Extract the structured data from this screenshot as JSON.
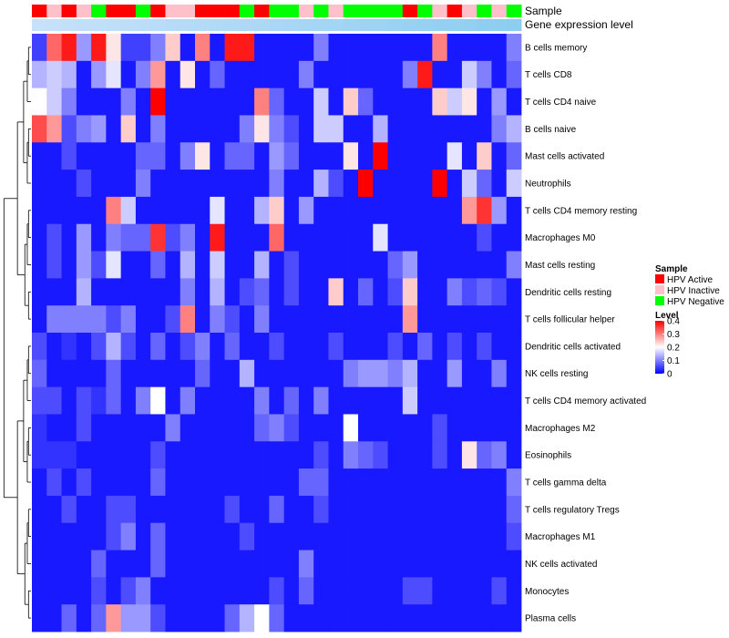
{
  "chart_data": {
    "type": "heatmap",
    "annotation_tracks": [
      "Sample",
      "Gene expression level"
    ],
    "rows": [
      "B cells memory",
      "T cells CD8",
      "T cells CD4 naive",
      "B cells naive",
      "Mast cells activated",
      "Neutrophils",
      "T cells CD4 memory resting",
      "Macrophages M0",
      "Mast cells resting",
      "Dendritic cells resting",
      "T cells follicular helper",
      "Dendritic cells activated",
      "NK cells resting",
      "T cells CD4 memory activated",
      "Macrophages M2",
      "Eosinophils",
      "T cells gamma delta",
      "T cells regulatory  Tregs",
      "Macrophages M1",
      "NK cells activated",
      "Monocytes",
      "Plasma cells"
    ],
    "sample_groups": [
      "A",
      "P",
      "A",
      "P",
      "N",
      "A",
      "A",
      "N",
      "A",
      "P",
      "P",
      "A",
      "A",
      "A",
      "N",
      "A",
      "N",
      "N",
      "P",
      "N",
      "P",
      "N",
      "N",
      "N",
      "N",
      "A",
      "N",
      "P",
      "A",
      "P",
      "N",
      "P",
      "N"
    ],
    "values": [
      [
        0.05,
        0.32,
        0.38,
        0.12,
        0.38,
        0.22,
        0.05,
        0.05,
        0.1,
        0.24,
        0.02,
        0.3,
        0.02,
        0.38,
        0.38,
        0.02,
        0.02,
        0.02,
        0.02,
        0.1,
        0.02,
        0.02,
        0.02,
        0.02,
        0.02,
        0.02,
        0.02,
        0.3,
        0.02,
        0.02,
        0.02,
        0.02,
        0.1
      ],
      [
        0.14,
        0.16,
        0.14,
        0.02,
        0.12,
        0.18,
        0.02,
        0.1,
        0.28,
        0.02,
        0.22,
        0.02,
        0.08,
        0.02,
        0.02,
        0.02,
        0.02,
        0.02,
        0.1,
        0.02,
        0.02,
        0.02,
        0.02,
        0.02,
        0.02,
        0.1,
        0.38,
        0.02,
        0.02,
        0.16,
        0.1,
        0.02,
        0.08
      ],
      [
        0.2,
        0.16,
        0.1,
        0.02,
        0.02,
        0.02,
        0.1,
        0.02,
        0.4,
        0.02,
        0.02,
        0.02,
        0.02,
        0.02,
        0.02,
        0.3,
        0.08,
        0.02,
        0.02,
        0.16,
        0.02,
        0.24,
        0.08,
        0.02,
        0.02,
        0.02,
        0.02,
        0.24,
        0.16,
        0.22,
        0.02,
        0.12,
        0.02
      ],
      [
        0.34,
        0.28,
        0.06,
        0.1,
        0.12,
        0.02,
        0.24,
        0.02,
        0.1,
        0.02,
        0.02,
        0.02,
        0.02,
        0.02,
        0.1,
        0.22,
        0.1,
        0.06,
        0.02,
        0.16,
        0.16,
        0.02,
        0.02,
        0.14,
        0.02,
        0.02,
        0.02,
        0.02,
        0.02,
        0.02,
        0.02,
        0.1,
        0.14
      ],
      [
        0.02,
        0.02,
        0.06,
        0.02,
        0.02,
        0.02,
        0.02,
        0.08,
        0.08,
        0.02,
        0.1,
        0.22,
        0.02,
        0.08,
        0.08,
        0.02,
        0.12,
        0.08,
        0.02,
        0.02,
        0.02,
        0.22,
        0.02,
        0.4,
        0.02,
        0.02,
        0.02,
        0.02,
        0.18,
        0.02,
        0.24,
        0.02,
        0.08
      ],
      [
        0.02,
        0.02,
        0.02,
        0.06,
        0.02,
        0.02,
        0.02,
        0.1,
        0.02,
        0.02,
        0.02,
        0.02,
        0.02,
        0.02,
        0.02,
        0.02,
        0.1,
        0.02,
        0.02,
        0.14,
        0.06,
        0.02,
        0.4,
        0.02,
        0.02,
        0.02,
        0.02,
        0.4,
        0.02,
        0.16,
        0.08,
        0.02,
        0.16
      ],
      [
        0.02,
        0.02,
        0.02,
        0.02,
        0.02,
        0.3,
        0.16,
        0.02,
        0.02,
        0.02,
        0.02,
        0.02,
        0.18,
        0.02,
        0.02,
        0.14,
        0.24,
        0.02,
        0.12,
        0.02,
        0.02,
        0.02,
        0.02,
        0.02,
        0.02,
        0.02,
        0.02,
        0.02,
        0.02,
        0.28,
        0.36,
        0.12,
        0.02
      ],
      [
        0.02,
        0.06,
        0.02,
        0.12,
        0.02,
        0.1,
        0.08,
        0.08,
        0.36,
        0.06,
        0.1,
        0.02,
        0.38,
        0.02,
        0.02,
        0.02,
        0.32,
        0.02,
        0.02,
        0.02,
        0.02,
        0.02,
        0.02,
        0.18,
        0.02,
        0.02,
        0.02,
        0.02,
        0.02,
        0.02,
        0.06,
        0.02,
        0.02
      ],
      [
        0.02,
        0.06,
        0.02,
        0.12,
        0.06,
        0.18,
        0.02,
        0.02,
        0.08,
        0.02,
        0.14,
        0.02,
        0.16,
        0.02,
        0.02,
        0.14,
        0.02,
        0.06,
        0.02,
        0.02,
        0.02,
        0.02,
        0.02,
        0.02,
        0.08,
        0.12,
        0.02,
        0.02,
        0.02,
        0.02,
        0.02,
        0.02,
        0.1
      ],
      [
        0.02,
        0.02,
        0.02,
        0.14,
        0.02,
        0.02,
        0.02,
        0.02,
        0.02,
        0.02,
        0.1,
        0.02,
        0.14,
        0.02,
        0.06,
        0.08,
        0.02,
        0.06,
        0.02,
        0.02,
        0.24,
        0.02,
        0.08,
        0.02,
        0.06,
        0.24,
        0.02,
        0.02,
        0.1,
        0.06,
        0.08,
        0.06,
        0.02
      ],
      [
        0.02,
        0.1,
        0.1,
        0.1,
        0.1,
        0.06,
        0.1,
        0.02,
        0.02,
        0.06,
        0.3,
        0.02,
        0.1,
        0.06,
        0.02,
        0.1,
        0.02,
        0.02,
        0.02,
        0.02,
        0.02,
        0.02,
        0.02,
        0.02,
        0.02,
        0.28,
        0.02,
        0.02,
        0.02,
        0.02,
        0.02,
        0.02,
        0.02
      ],
      [
        0.06,
        0.02,
        0.04,
        0.02,
        0.06,
        0.14,
        0.06,
        0.02,
        0.08,
        0.02,
        0.06,
        0.1,
        0.02,
        0.08,
        0.02,
        0.02,
        0.06,
        0.02,
        0.02,
        0.02,
        0.06,
        0.02,
        0.02,
        0.02,
        0.06,
        0.02,
        0.08,
        0.02,
        0.06,
        0.02,
        0.06,
        0.02,
        0.02
      ],
      [
        0.08,
        0.02,
        0.02,
        0.02,
        0.02,
        0.08,
        0.02,
        0.02,
        0.02,
        0.02,
        0.02,
        0.08,
        0.02,
        0.02,
        0.14,
        0.02,
        0.02,
        0.02,
        0.02,
        0.02,
        0.02,
        0.1,
        0.12,
        0.12,
        0.1,
        0.14,
        0.02,
        0.02,
        0.12,
        0.02,
        0.02,
        0.1,
        0.02
      ],
      [
        0.06,
        0.06,
        0.02,
        0.06,
        0.04,
        0.08,
        0.02,
        0.1,
        0.2,
        0.02,
        0.1,
        0.02,
        0.02,
        0.02,
        0.02,
        0.1,
        0.02,
        0.08,
        0.02,
        0.1,
        0.02,
        0.02,
        0.02,
        0.02,
        0.02,
        0.16,
        0.02,
        0.02,
        0.02,
        0.02,
        0.02,
        0.02,
        0.02
      ],
      [
        0.04,
        0.02,
        0.02,
        0.06,
        0.02,
        0.02,
        0.02,
        0.02,
        0.02,
        0.1,
        0.02,
        0.02,
        0.02,
        0.02,
        0.02,
        0.08,
        0.1,
        0.06,
        0.02,
        0.02,
        0.02,
        0.2,
        0.02,
        0.02,
        0.02,
        0.02,
        0.02,
        0.06,
        0.02,
        0.02,
        0.02,
        0.02,
        0.02
      ],
      [
        0.04,
        0.04,
        0.04,
        0.02,
        0.02,
        0.02,
        0.02,
        0.02,
        0.06,
        0.02,
        0.02,
        0.02,
        0.02,
        0.02,
        0.02,
        0.02,
        0.02,
        0.02,
        0.02,
        0.06,
        0.02,
        0.1,
        0.08,
        0.06,
        0.02,
        0.02,
        0.02,
        0.06,
        0.02,
        0.22,
        0.08,
        0.1,
        0.02
      ],
      [
        0.02,
        0.06,
        0.02,
        0.06,
        0.02,
        0.02,
        0.02,
        0.02,
        0.08,
        0.02,
        0.02,
        0.02,
        0.02,
        0.02,
        0.02,
        0.02,
        0.02,
        0.02,
        0.08,
        0.08,
        0.02,
        0.02,
        0.02,
        0.02,
        0.02,
        0.02,
        0.02,
        0.02,
        0.02,
        0.02,
        0.02,
        0.02,
        0.1
      ],
      [
        0.02,
        0.02,
        0.06,
        0.02,
        0.02,
        0.06,
        0.06,
        0.02,
        0.02,
        0.02,
        0.02,
        0.02,
        0.02,
        0.06,
        0.02,
        0.02,
        0.08,
        0.02,
        0.02,
        0.06,
        0.02,
        0.02,
        0.02,
        0.02,
        0.02,
        0.02,
        0.02,
        0.02,
        0.02,
        0.02,
        0.02,
        0.02,
        0.08
      ],
      [
        0.02,
        0.02,
        0.02,
        0.02,
        0.02,
        0.06,
        0.1,
        0.02,
        0.08,
        0.02,
        0.02,
        0.02,
        0.02,
        0.02,
        0.06,
        0.02,
        0.02,
        0.02,
        0.02,
        0.02,
        0.02,
        0.02,
        0.02,
        0.02,
        0.02,
        0.02,
        0.02,
        0.02,
        0.02,
        0.02,
        0.02,
        0.02,
        0.06
      ],
      [
        0.02,
        0.02,
        0.02,
        0.02,
        0.08,
        0.02,
        0.02,
        0.02,
        0.08,
        0.02,
        0.02,
        0.02,
        0.02,
        0.02,
        0.02,
        0.02,
        0.02,
        0.02,
        0.1,
        0.02,
        0.02,
        0.02,
        0.02,
        0.02,
        0.02,
        0.02,
        0.02,
        0.02,
        0.02,
        0.02,
        0.02,
        0.02,
        0.02
      ],
      [
        0.02,
        0.02,
        0.02,
        0.02,
        0.06,
        0.02,
        0.06,
        0.1,
        0.02,
        0.02,
        0.02,
        0.02,
        0.02,
        0.02,
        0.02,
        0.02,
        0.06,
        0.02,
        0.08,
        0.02,
        0.02,
        0.02,
        0.02,
        0.02,
        0.02,
        0.06,
        0.06,
        0.02,
        0.02,
        0.02,
        0.02,
        0.06,
        0.02
      ],
      [
        0.02,
        0.02,
        0.08,
        0.02,
        0.08,
        0.28,
        0.12,
        0.12,
        0.06,
        0.02,
        0.02,
        0.02,
        0.02,
        0.08,
        0.14,
        0.2,
        0.08,
        0.02,
        0.02,
        0.02,
        0.02,
        0.02,
        0.02,
        0.02,
        0.02,
        0.02,
        0.02,
        0.02,
        0.02,
        0.02,
        0.02,
        0.02,
        0.02
      ]
    ],
    "legend_sample": {
      "title": "Sample",
      "entries": [
        {
          "key": "A",
          "label": "HPV Active",
          "color": "#ff0000"
        },
        {
          "key": "P",
          "label": "HPV Inactive",
          "color": "#ffc0cb"
        },
        {
          "key": "N",
          "label": "HPV Negative",
          "color": "#00ff00"
        }
      ]
    },
    "legend_level": {
      "title": "Level",
      "ticks": [
        "0.4",
        "0.3",
        "0.2",
        "0.1",
        "0"
      ],
      "tick_values": [
        0.4,
        0.3,
        0.2,
        0.1,
        0.0
      ],
      "range": [
        0,
        0.4
      ],
      "colors": {
        "low": "#0000ff",
        "mid": "#ffffff",
        "high": "#ff0000",
        "mid_value": 0.2
      }
    },
    "expression_bar_color": "#87ceeb"
  }
}
